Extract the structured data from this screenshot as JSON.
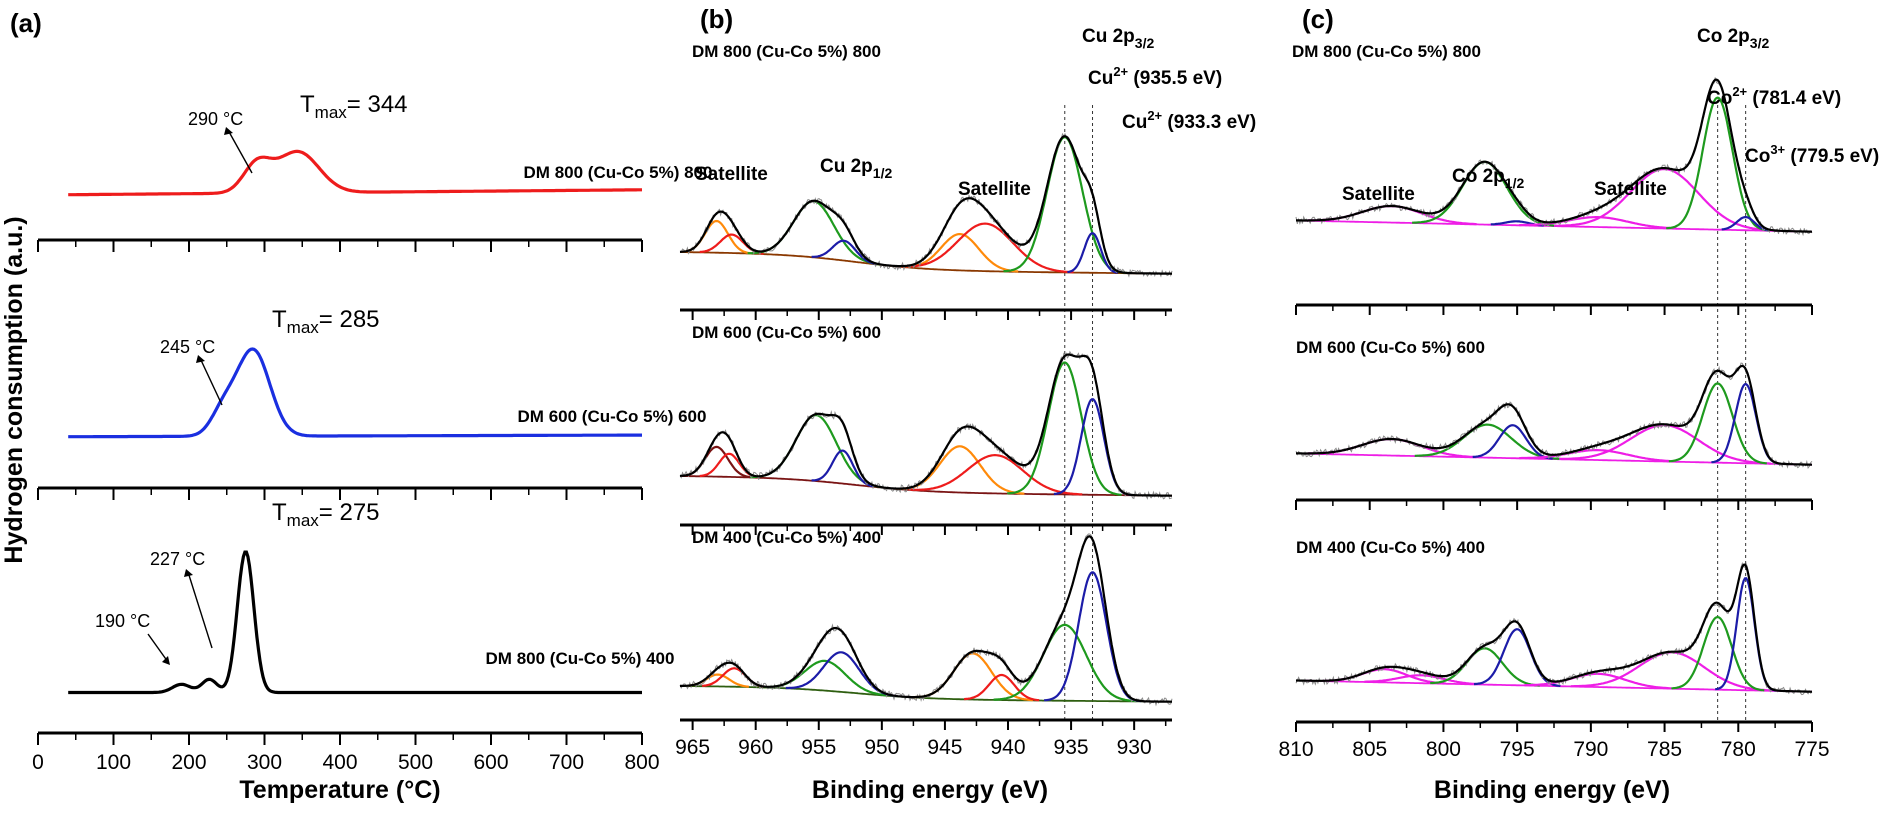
{
  "colors": {
    "red": "#ee1c1c",
    "blue": "#1a2fe0",
    "black": "#000000",
    "green": "#1e9a1e",
    "orange": "#ff8a0a",
    "magenta": "#ee1ee6",
    "navy": "#1c1ca8",
    "brown": "#8a3800",
    "darkred": "#7a1414",
    "olive": "#2e5e10",
    "noise": "#8c8c8c"
  },
  "panel_labels": {
    "a": "(a)",
    "b": "(b)",
    "c": "(c)"
  },
  "y_axis_title": "Hydrogen consumption (a.u.)",
  "chart_data": [
    {
      "type": "line",
      "panel": "(a)",
      "xlabel": "Temperature (°C)",
      "xlim": [
        0,
        800
      ],
      "xticks": [
        0,
        100,
        200,
        300,
        400,
        500,
        600,
        700,
        800
      ],
      "xtick_labels": [
        "0",
        "100",
        "200",
        "300",
        "400",
        "500",
        "600",
        "700",
        "800"
      ],
      "ylabel": "Hydrogen consumption (a.u.)",
      "series": [
        {
          "name": "DM 800 (Cu-Co 5%) 800",
          "color": "red",
          "tmax_label": "T",
          "tmax_sub": "max",
          "tmax_value": "= 344",
          "x_range": [
            40,
            800
          ],
          "peaks": [
            {
              "center": 290,
              "width": 18,
              "height": 0.34
            },
            {
              "center": 344,
              "width": 28,
              "height": 0.5
            }
          ],
          "baseline_start": 0.04,
          "baseline_end": 0.1,
          "annotations": [
            {
              "text": "290 °C",
              "x": 290
            }
          ]
        },
        {
          "name": "DM 600 (Cu-Co 5%) 600",
          "color": "blue",
          "tmax_label": "T",
          "tmax_sub": "max",
          "tmax_value": "= 285",
          "x_range": [
            40,
            800
          ],
          "peaks": [
            {
              "center": 245,
              "width": 16,
              "height": 0.28
            },
            {
              "center": 285,
              "width": 22,
              "height": 1.05
            }
          ],
          "baseline_start": 0.04,
          "baseline_end": 0.06,
          "annotations": [
            {
              "text": "245 °C",
              "x": 245
            }
          ]
        },
        {
          "name": "DM 800 (Cu-Co 5%) 400",
          "color": "black",
          "tmax_label": "T",
          "tmax_sub": "max",
          "tmax_value": "= 275",
          "x_range": [
            40,
            800
          ],
          "peaks": [
            {
              "center": 190,
              "width": 12,
              "height": 0.1
            },
            {
              "center": 227,
              "width": 10,
              "height": 0.16
            },
            {
              "center": 275,
              "width": 11,
              "height": 1.72
            }
          ],
          "baseline_start": 0.03,
          "baseline_end": 0.03,
          "annotations": [
            {
              "text": "190 °C",
              "x": 190
            },
            {
              "text": "227 °C",
              "x": 227
            }
          ]
        }
      ]
    },
    {
      "type": "line",
      "panel": "(b)",
      "xlabel": "Binding energy (eV)",
      "xlim": [
        966,
        927
      ],
      "xticks": [
        965,
        960,
        955,
        950,
        945,
        940,
        935,
        930
      ],
      "xtick_labels": [
        "965",
        "960",
        "955",
        "950",
        "945",
        "940",
        "935",
        "930"
      ],
      "ref_lines": [
        935.5,
        933.3
      ],
      "labels": {
        "cu2p32_main": "Cu 2p",
        "cu2p32_sub": "3/2",
        "cu2p12_main": "Cu 2p",
        "cu2p12_sub": "1/2",
        "satellite_1": "Satellite",
        "satellite_2": "Satellite",
        "cu2a_main": "Cu",
        "cu2a_sup": "2+",
        "cu2a_val": " (935.5 eV)",
        "cu2b_main": "Cu",
        "cu2b_sup": "2+",
        "cu2b_val": " (933.3 eV)"
      },
      "series": [
        {
          "name": "DM 800 (Cu-Co 5%) 800",
          "background": {
            "start": 0.1,
            "end": 0.02,
            "step_center": 952,
            "step_width": 3,
            "hi": 0.25,
            "lo": 0.0
          },
          "components": [
            {
              "color": "orange",
              "center": 963.1,
              "width": 0.9,
              "height": 0.48
            },
            {
              "color": "red",
              "center": 961.9,
              "width": 0.9,
              "height": 0.28
            },
            {
              "color": "green",
              "center": 955.4,
              "width": 1.6,
              "height": 0.85
            },
            {
              "color": "navy",
              "center": 953.0,
              "width": 0.9,
              "height": 0.3
            },
            {
              "color": "orange",
              "center": 943.8,
              "width": 1.5,
              "height": 0.55
            },
            {
              "color": "red",
              "center": 941.8,
              "width": 2.2,
              "height": 0.72
            },
            {
              "color": "green",
              "center": 935.5,
              "width": 1.4,
              "height": 2.05
            },
            {
              "color": "navy",
              "center": 933.3,
              "width": 0.65,
              "height": 0.6
            }
          ],
          "bg_color": "brown"
        },
        {
          "name": "DM 600 (Cu-Co 5%) 600",
          "background": {
            "start": 0.1,
            "end": 0.02,
            "step_center": 952,
            "step_width": 3,
            "hi": 0.22,
            "lo": 0.0
          },
          "components": [
            {
              "color": "darkred",
              "center": 963.1,
              "width": 0.9,
              "height": 0.45
            },
            {
              "color": "red",
              "center": 962.1,
              "width": 0.8,
              "height": 0.35
            },
            {
              "color": "green",
              "center": 955.2,
              "width": 1.6,
              "height": 1.0
            },
            {
              "color": "navy",
              "center": 953.1,
              "width": 0.8,
              "height": 0.5
            },
            {
              "color": "orange",
              "center": 943.8,
              "width": 1.6,
              "height": 0.7
            },
            {
              "color": "red",
              "center": 941.0,
              "width": 2.2,
              "height": 0.58
            },
            {
              "color": "green",
              "center": 935.5,
              "width": 1.3,
              "height": 2.0
            },
            {
              "color": "navy",
              "center": 933.3,
              "width": 0.9,
              "height": 1.45
            }
          ],
          "bg_color": "darkred"
        },
        {
          "name": "DM 400 (Cu-Co 5%) 400",
          "background": {
            "start": 0.08,
            "end": 0.02,
            "step_center": 952,
            "step_width": 3,
            "hi": 0.18,
            "lo": 0.0
          },
          "components": [
            {
              "color": "orange",
              "center": 963.0,
              "width": 0.9,
              "height": 0.18
            },
            {
              "color": "red",
              "center": 961.7,
              "width": 0.9,
              "height": 0.28
            },
            {
              "color": "green",
              "center": 954.5,
              "width": 1.6,
              "height": 0.45
            },
            {
              "color": "navy",
              "center": 953.2,
              "width": 1.4,
              "height": 0.6
            },
            {
              "color": "orange",
              "center": 942.8,
              "width": 1.5,
              "height": 0.7
            },
            {
              "color": "red",
              "center": 940.5,
              "width": 1.0,
              "height": 0.38
            },
            {
              "color": "green",
              "center": 935.5,
              "width": 1.7,
              "height": 1.15
            },
            {
              "color": "navy",
              "center": 933.3,
              "width": 1.1,
              "height": 1.95
            }
          ],
          "bg_color": "olive"
        }
      ]
    },
    {
      "type": "line",
      "panel": "(c)",
      "xlabel": "Binding energy (eV)",
      "xlim": [
        810,
        775
      ],
      "xticks": [
        810,
        805,
        800,
        795,
        790,
        785,
        780,
        775
      ],
      "xtick_labels": [
        "810",
        "805",
        "800",
        "795",
        "790",
        "785",
        "780",
        "775"
      ],
      "ref_lines": [
        781.4,
        779.5
      ],
      "labels": {
        "co2p32_main": "Co 2p",
        "co2p32_sub": "3/2",
        "co2p12_main": "Co 2p",
        "co2p12_sub": "1/2",
        "satellite_1": "Satellite",
        "satellite_2": "Satellite",
        "co2_main": "Co",
        "co2_sup": "2+",
        "co2_val": " (781.4 eV)",
        "co3_main": "Co",
        "co3_sup": "3+",
        "co3_val": " (779.5 eV)"
      },
      "series": [
        {
          "name": "DM 800 (Cu-Co 5%) 800",
          "background": {
            "start": 0.22,
            "end": 0.05
          },
          "components": [
            {
              "color": "magenta",
              "center": 803.5,
              "width": 2.0,
              "height": 0.25
            },
            {
              "color": "green",
              "center": 797.2,
              "width": 1.5,
              "height": 0.95
            },
            {
              "color": "navy",
              "center": 795.0,
              "width": 0.8,
              "height": 0.06
            },
            {
              "color": "magenta",
              "center": 789.5,
              "width": 2.0,
              "height": 0.15
            },
            {
              "color": "magenta",
              "center": 785.0,
              "width": 2.3,
              "height": 0.9
            },
            {
              "color": "green",
              "center": 781.4,
              "width": 1.0,
              "height": 2.0
            },
            {
              "color": "navy",
              "center": 779.5,
              "width": 0.6,
              "height": 0.2
            }
          ],
          "bg_color": "magenta"
        },
        {
          "name": "DM 600 (Cu-Co 5%) 600",
          "background": {
            "start": 0.22,
            "end": 0.05
          },
          "components": [
            {
              "color": "magenta",
              "center": 803.5,
              "width": 2.0,
              "height": 0.25
            },
            {
              "color": "green",
              "center": 797.0,
              "width": 1.6,
              "height": 0.5
            },
            {
              "color": "navy",
              "center": 795.3,
              "width": 0.9,
              "height": 0.5
            },
            {
              "color": "magenta",
              "center": 789.5,
              "width": 2.0,
              "height": 0.15
            },
            {
              "color": "magenta",
              "center": 785.0,
              "width": 2.3,
              "height": 0.55
            },
            {
              "color": "green",
              "center": 781.4,
              "width": 1.0,
              "height": 1.2
            },
            {
              "color": "navy",
              "center": 779.5,
              "width": 0.7,
              "height": 1.2
            }
          ],
          "bg_color": "magenta"
        },
        {
          "name": "DM 400 (Cu-Co 5%) 400",
          "background": {
            "start": 0.22,
            "end": 0.05
          },
          "components": [
            {
              "color": "magenta",
              "center": 804.0,
              "width": 1.5,
              "height": 0.2
            },
            {
              "color": "magenta",
              "center": 801.5,
              "width": 1.5,
              "height": 0.12
            },
            {
              "color": "green",
              "center": 797.2,
              "width": 1.2,
              "height": 0.55
            },
            {
              "color": "navy",
              "center": 795.0,
              "width": 0.9,
              "height": 0.85
            },
            {
              "color": "magenta",
              "center": 789.5,
              "width": 1.8,
              "height": 0.2
            },
            {
              "color": "magenta",
              "center": 784.5,
              "width": 2.2,
              "height": 0.55
            },
            {
              "color": "green",
              "center": 781.4,
              "width": 0.95,
              "height": 1.1
            },
            {
              "color": "navy",
              "center": 779.5,
              "width": 0.6,
              "height": 1.7
            }
          ],
          "bg_color": "magenta"
        }
      ]
    }
  ]
}
